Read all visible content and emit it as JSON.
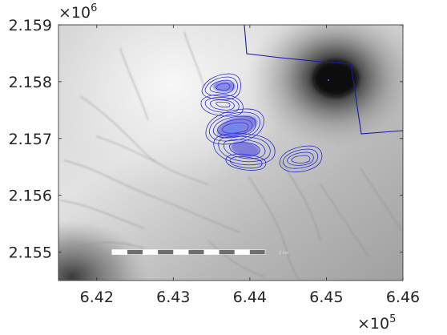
{
  "chart_data": {
    "type": "map",
    "x_axis": {
      "range": [
        641500,
        646000
      ],
      "ticks": [
        642000,
        643000,
        644000,
        645000,
        646000
      ],
      "tick_labels": [
        "6.42",
        "6.43",
        "6.44",
        "6.45",
        "6.46"
      ],
      "multiplier_base": "×10",
      "multiplier_exponent": "5"
    },
    "y_axis": {
      "range": [
        2154500,
        2159000
      ],
      "ticks": [
        2155000,
        2156000,
        2157000,
        2158000,
        2159000
      ],
      "tick_labels": [
        "2.155",
        "2.156",
        "2.157",
        "2.158",
        "2.159"
      ],
      "multiplier_base": "×10",
      "multiplier_exponent": "6"
    },
    "basemap": "grayscale shaded elevation",
    "contour_color": "#2a2ad6",
    "boundary_color": "#1a1aa8",
    "vent_point": {
      "x": 645020,
      "y": 2158010
    },
    "scale_bar": {
      "label": "2 km",
      "x_start": 642200,
      "x_end": 644200,
      "y": 2155000,
      "segments": 10
    },
    "grid": false
  }
}
